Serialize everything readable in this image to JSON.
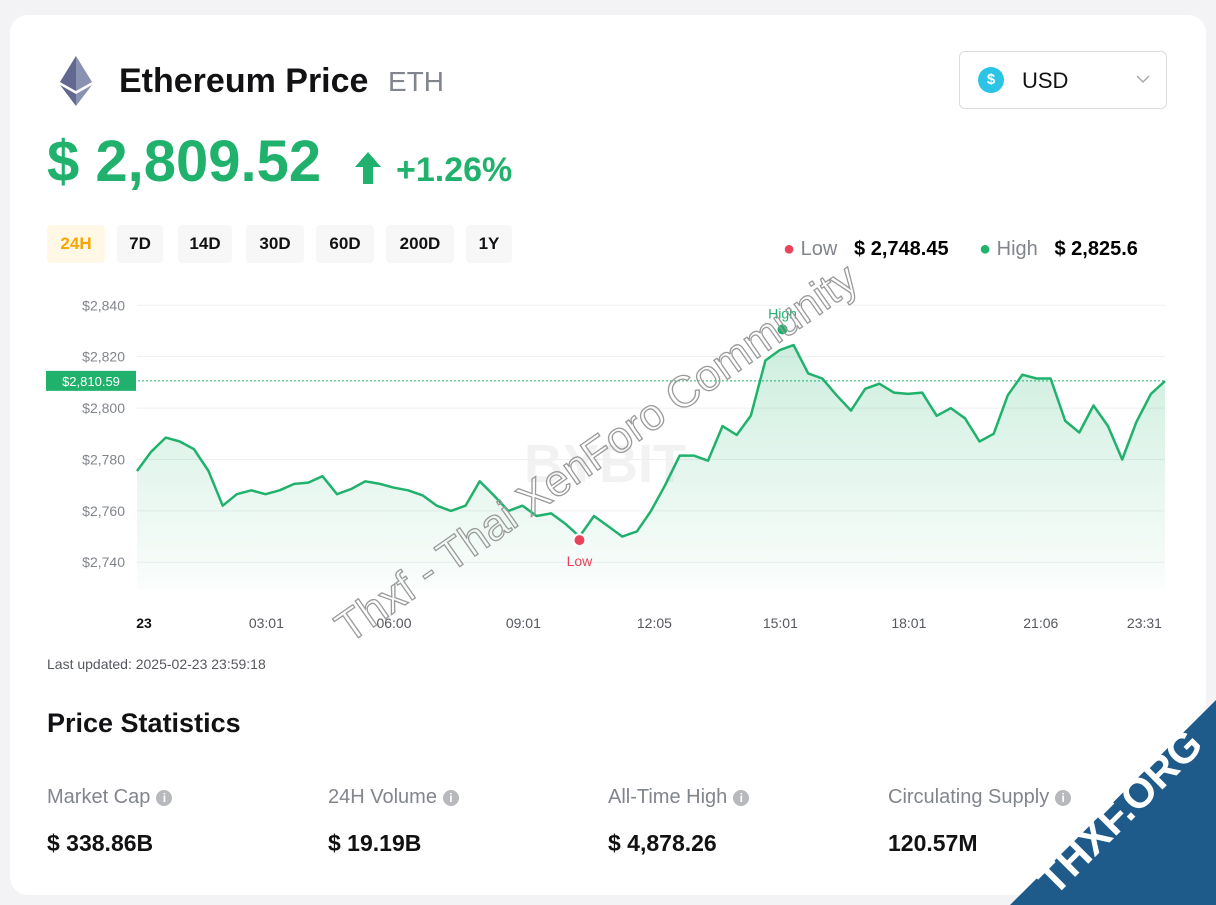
{
  "header": {
    "title": "Ethereum Price",
    "symbol": "ETH",
    "currency": "USD",
    "price": "$ 2,809.52",
    "change": "+1.26%"
  },
  "ranges": [
    "24H",
    "7D",
    "14D",
    "30D",
    "60D",
    "200D",
    "1Y"
  ],
  "summary": {
    "low_label": "Low",
    "low_value": "$ 2,748.45",
    "high_label": "High",
    "high_value": "$ 2,825.6"
  },
  "chart_data": {
    "type": "line",
    "x": [
      0,
      0.33,
      0.67,
      1,
      1.33,
      1.67,
      2,
      2.33,
      2.67,
      3,
      3.33,
      3.67,
      4,
      4.33,
      4.67,
      5,
      5.33,
      5.67,
      6,
      6.33,
      6.67,
      7,
      7.33,
      7.67,
      8,
      8.33,
      8.67,
      9,
      9.33,
      9.67,
      10,
      10.33,
      10.67,
      11,
      11.33,
      11.67,
      12,
      12.33,
      12.67,
      13,
      13.33,
      13.67,
      14,
      14.33,
      14.67,
      15,
      15.33,
      15.67,
      16,
      16.33,
      16.67,
      17,
      17.33,
      17.67,
      18,
      18.33,
      18.67,
      19,
      19.33,
      19.67,
      20,
      20.33,
      20.67,
      21,
      21.33,
      21.67,
      22,
      22.33,
      22.67,
      23,
      23.33,
      23.67,
      24
    ],
    "series": [
      {
        "name": "ETH",
        "color": "#20b26c",
        "values": [
          2775.5,
          2783,
          2788.5,
          2787,
          2784,
          2775.5,
          2762,
          2766.5,
          2768,
          2766.5,
          2768,
          2770.5,
          2771,
          2773.5,
          2766.5,
          2768.5,
          2771.5,
          2770.5,
          2769,
          2768,
          2766,
          2762,
          2760,
          2762,
          2771.5,
          2766,
          2760,
          2762,
          2758,
          2759,
          2755,
          2750,
          2758,
          2754,
          2750,
          2752,
          2760,
          2770,
          2781.5,
          2781.5,
          2779.5,
          2793,
          2789.5,
          2797,
          2818.5,
          2822.5,
          2824.5,
          2813.5,
          2811.5,
          2805,
          2799,
          2807.5,
          2809.5,
          2806,
          2805.5,
          2806,
          2797,
          2800,
          2796,
          2787,
          2790,
          2805,
          2813,
          2811.5,
          2811.5,
          2795,
          2790.5,
          2801,
          2793,
          2780,
          2794.5,
          2805.5,
          2810.5
        ]
      }
    ],
    "xlim": [
      0,
      24
    ],
    "xticks": [
      {
        "value": 0,
        "label": "23"
      },
      {
        "value": 3.02,
        "label": "03:01"
      },
      {
        "value": 6,
        "label": "06:00"
      },
      {
        "value": 9.02,
        "label": "09:01"
      },
      {
        "value": 12.08,
        "label": "12:05"
      },
      {
        "value": 15.02,
        "label": "15:01"
      },
      {
        "value": 18.02,
        "label": "18:01"
      },
      {
        "value": 21.1,
        "label": "21:06"
      },
      {
        "value": 23.52,
        "label": "23:31"
      }
    ],
    "ylim": [
      2729.2,
      2844
    ],
    "yticks": [
      {
        "value": 2740,
        "label": "$2,740"
      },
      {
        "value": 2760,
        "label": "$2,760"
      },
      {
        "value": 2780,
        "label": "$2,780"
      },
      {
        "value": 2800,
        "label": "$2,800"
      },
      {
        "value": 2820,
        "label": "$2,820"
      },
      {
        "value": 2840,
        "label": "$2,840"
      }
    ],
    "grid": true,
    "current_price": {
      "value": 2810.59,
      "label": "$2,810.59"
    },
    "annotations": [
      {
        "label": "High",
        "x": 15.07,
        "y": 2830.6,
        "color": "#20b26c"
      },
      {
        "label": "Low",
        "x": 10.33,
        "y": 2748.6,
        "color": "#e94359"
      }
    ],
    "watermark": "BYBIT"
  },
  "last_updated": "Last updated: 2025-02-23 23:59:18",
  "statistics": {
    "title": "Price Statistics",
    "items": [
      {
        "label": "Market Cap",
        "value": "$ 338.86B"
      },
      {
        "label": "24H Volume",
        "value": "$ 19.19B"
      },
      {
        "label": "All-Time High",
        "value": "$ 4,878.26"
      },
      {
        "label": "Circulating Supply",
        "value": "120.57M"
      }
    ]
  },
  "overlays": {
    "text": "Thxf - Thai XenForo Community",
    "badge": "THXF.ORG"
  }
}
